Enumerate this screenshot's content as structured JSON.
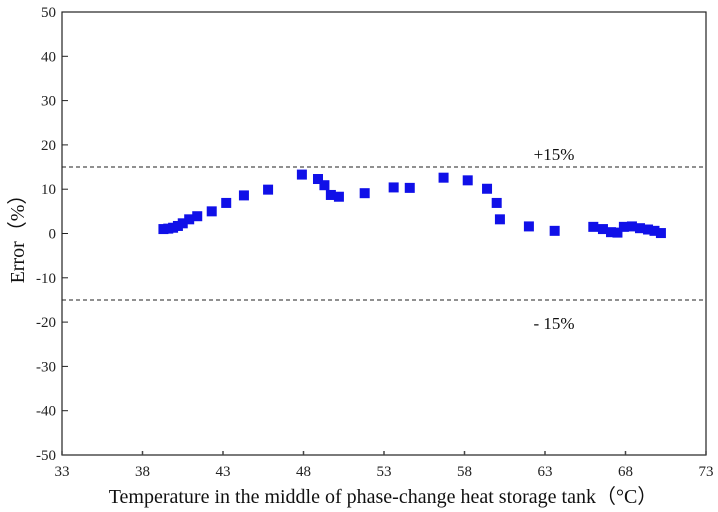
{
  "chart_data": {
    "type": "scatter",
    "xlabel": "Temperature in the middle of phase-change heat storage tank（°C）",
    "ylabel": "Error（%）",
    "xlim": [
      33,
      73
    ],
    "ylim": [
      -50,
      50
    ],
    "x_ticks": [
      33,
      38,
      43,
      48,
      53,
      58,
      63,
      68,
      73
    ],
    "y_ticks": [
      -50,
      -40,
      -30,
      -20,
      -10,
      0,
      10,
      20,
      30,
      40,
      50
    ],
    "grid": false,
    "marker": "square",
    "marker_color": "#1010e8",
    "reference_lines": [
      {
        "y": 15,
        "label": "+15%",
        "style": "dashed"
      },
      {
        "y": -15,
        "label": "- 15%",
        "style": "dashed"
      }
    ],
    "series": [
      {
        "points": [
          {
            "x": 39.3,
            "y": 1.0
          },
          {
            "x": 39.6,
            "y": 1.1
          },
          {
            "x": 39.9,
            "y": 1.3
          },
          {
            "x": 40.2,
            "y": 1.7
          },
          {
            "x": 40.5,
            "y": 2.3
          },
          {
            "x": 40.9,
            "y": 3.2
          },
          {
            "x": 41.4,
            "y": 3.9
          },
          {
            "x": 42.3,
            "y": 5.0
          },
          {
            "x": 43.2,
            "y": 6.9
          },
          {
            "x": 44.3,
            "y": 8.6
          },
          {
            "x": 45.8,
            "y": 9.9
          },
          {
            "x": 47.9,
            "y": 13.3
          },
          {
            "x": 48.9,
            "y": 12.3
          },
          {
            "x": 49.3,
            "y": 10.9
          },
          {
            "x": 49.7,
            "y": 8.7
          },
          {
            "x": 50.2,
            "y": 8.3
          },
          {
            "x": 51.8,
            "y": 9.1
          },
          {
            "x": 53.6,
            "y": 10.4
          },
          {
            "x": 54.6,
            "y": 10.3
          },
          {
            "x": 56.7,
            "y": 12.6
          },
          {
            "x": 58.2,
            "y": 12.0
          },
          {
            "x": 59.4,
            "y": 10.1
          },
          {
            "x": 60.0,
            "y": 6.9
          },
          {
            "x": 60.2,
            "y": 3.2
          },
          {
            "x": 62.0,
            "y": 1.6
          },
          {
            "x": 63.6,
            "y": 0.6
          },
          {
            "x": 66.0,
            "y": 1.5
          },
          {
            "x": 66.6,
            "y": 1.0
          },
          {
            "x": 67.1,
            "y": 0.3
          },
          {
            "x": 67.5,
            "y": 0.2
          },
          {
            "x": 67.9,
            "y": 1.5
          },
          {
            "x": 68.4,
            "y": 1.6
          },
          {
            "x": 68.9,
            "y": 1.2
          },
          {
            "x": 69.4,
            "y": 0.9
          },
          {
            "x": 69.8,
            "y": 0.6
          },
          {
            "x": 70.2,
            "y": 0.1
          }
        ]
      }
    ]
  }
}
